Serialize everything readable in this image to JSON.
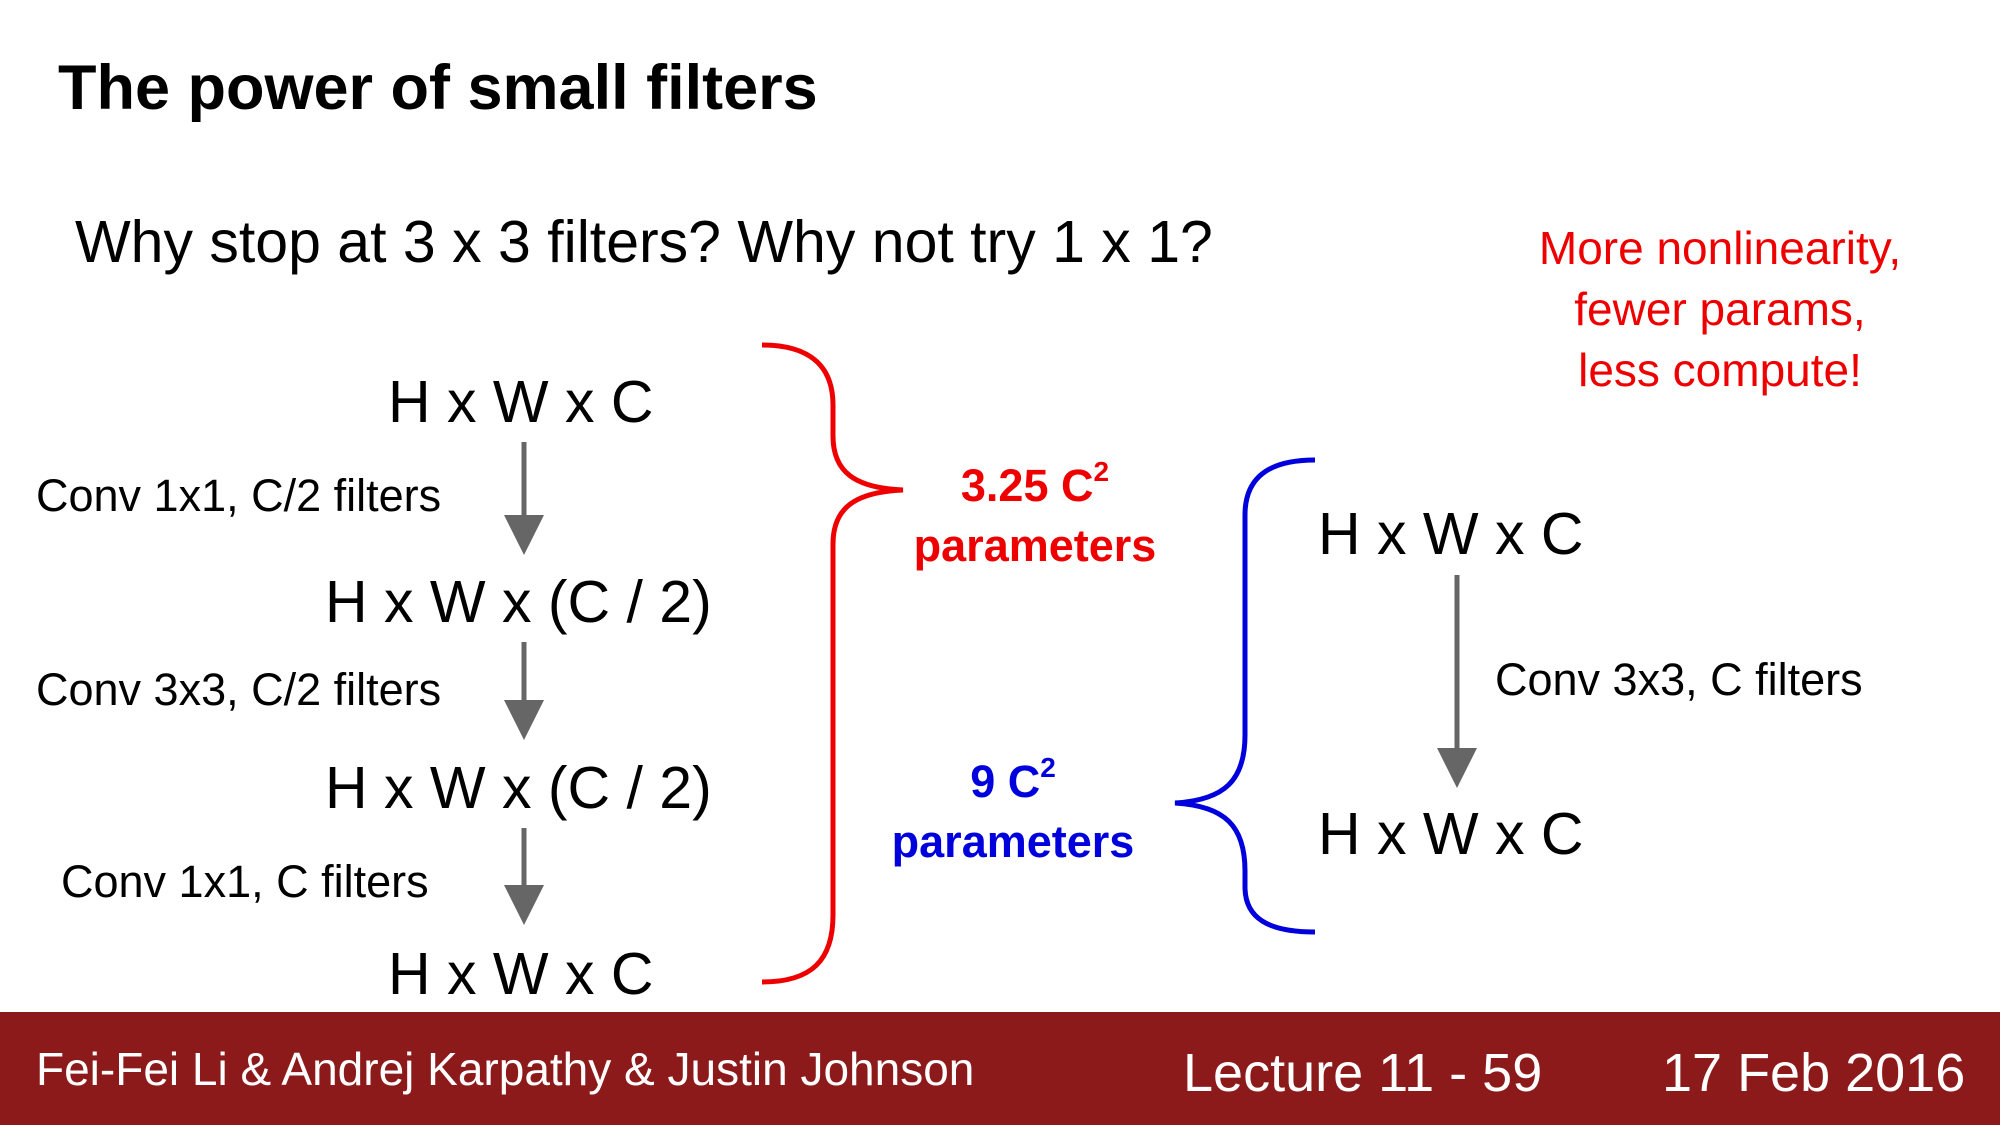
{
  "title": "The power of small filters",
  "question": "Why stop at 3 x 3 filters? Why not try 1 x 1?",
  "note": [
    "More nonlinearity,",
    "fewer params,",
    "less compute!"
  ],
  "left_stack": {
    "layers": [
      "H x W x C",
      "H x W x (C / 2)",
      "H x W x (C / 2)",
      "H x W x C"
    ],
    "convs": [
      "Conv 1x1, C/2 filters",
      "Conv 3x3, C/2 filters",
      "Conv 1x1, C filters"
    ]
  },
  "red_params": {
    "value": "3.25 C",
    "exp": "2",
    "word": "parameters"
  },
  "blue_params": {
    "value": "9 C",
    "exp": "2",
    "word": "parameters"
  },
  "right_stack": {
    "layers": [
      "H x W x C",
      "H x W x C"
    ],
    "conv": "Conv 3x3, C filters"
  },
  "colors": {
    "red": "#ee0000",
    "blue": "#0000dd",
    "arrow": "#666666",
    "footer": "#8d1a1b"
  },
  "footer": {
    "authors": "Fei-Fei Li & Andrej Karpathy & Justin Johnson",
    "lecture": "Lecture 11 - 59",
    "date": "17 Feb 2016"
  }
}
